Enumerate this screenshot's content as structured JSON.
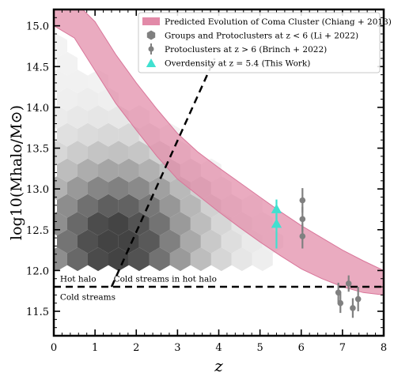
{
  "chart_data": {
    "type": "scatter",
    "title": "",
    "xlabel": "z",
    "ylabel": "log10(Mhalo/M⊙)",
    "xlim": [
      0,
      8
    ],
    "ylim": [
      11.2,
      15.2
    ],
    "xticks": [
      "0",
      "1",
      "2",
      "3",
      "4",
      "5",
      "6",
      "7",
      "8"
    ],
    "yticks": [
      "11.5",
      "12.0",
      "12.5",
      "13.0",
      "13.5",
      "14.0",
      "14.5",
      "15.0"
    ],
    "legend_position": "top-right",
    "legend": [
      {
        "label": "Predicted Evolution of Coma Cluster (Chiang + 2013)",
        "marker": "band",
        "color": "#e28aa8"
      },
      {
        "label": "Groups and Protoclusters at z < 6 (Li + 2022)",
        "marker": "hexagon",
        "color": "#808080"
      },
      {
        "label": "Protoclusters at z > 6 (Brinch + 2022)",
        "marker": "point-errorbar",
        "color": "#808080"
      },
      {
        "label": "Overdensity at z = 5.4 (This Work)",
        "marker": "triangle",
        "color": "#40e0d0"
      }
    ],
    "annotations": [
      {
        "text": "Hot halo",
        "x": 0.15,
        "y": 11.9
      },
      {
        "text": "Cold streams in hot halo",
        "x": 1.45,
        "y": 11.9
      },
      {
        "text": "Cold streams",
        "x": 0.15,
        "y": 11.68
      }
    ],
    "reference_lines": [
      {
        "name": "hot-cold-boundary",
        "style": "dashed",
        "points": [
          [
            0,
            11.8
          ],
          [
            8,
            11.8
          ]
        ]
      },
      {
        "name": "cold-streams-boundary",
        "style": "dashed",
        "points": [
          [
            1.4,
            11.8
          ],
          [
            3.9,
            14.6
          ]
        ]
      }
    ],
    "coma_band": {
      "z": [
        0,
        0.5,
        1.0,
        1.5,
        2.0,
        2.5,
        3.0,
        3.5,
        4.0,
        4.5,
        5.0,
        5.5,
        6.0,
        6.5,
        7.0,
        7.5,
        8.0
      ],
      "upper": [
        15.45,
        15.3,
        15.05,
        14.65,
        14.3,
        13.98,
        13.68,
        13.45,
        13.26,
        13.08,
        12.9,
        12.72,
        12.55,
        12.4,
        12.25,
        12.12,
        12.0
      ],
      "lower": [
        15.0,
        14.85,
        14.45,
        14.05,
        13.72,
        13.4,
        13.12,
        12.92,
        12.72,
        12.53,
        12.35,
        12.18,
        12.02,
        11.9,
        11.8,
        11.73,
        11.7
      ]
    },
    "density_hexbin": {
      "x_range": [
        0,
        5.5
      ],
      "y_range": [
        12.1,
        14.8
      ],
      "note": "grey density of groups and protoclusters at z < 6"
    },
    "series": [
      {
        "name": "Protoclusters at z > 6 (Brinch + 2022)",
        "marker": "point-errorbar",
        "color": "#808080",
        "points": [
          {
            "x": 6.03,
            "y": 12.86,
            "err": 0.15
          },
          {
            "x": 6.03,
            "y": 12.63,
            "err": 0.15
          },
          {
            "x": 6.03,
            "y": 12.42,
            "err": 0.15
          },
          {
            "x": 6.9,
            "y": 11.73,
            "err": 0.12
          },
          {
            "x": 6.95,
            "y": 11.6,
            "err": 0.12
          },
          {
            "x": 7.15,
            "y": 11.84,
            "err": 0.1
          },
          {
            "x": 7.25,
            "y": 11.54,
            "err": 0.12
          },
          {
            "x": 7.38,
            "y": 11.65,
            "err": 0.15
          }
        ]
      },
      {
        "name": "Overdensity at z = 5.4 (This Work)",
        "marker": "triangle",
        "color": "#40e0d0",
        "points": [
          {
            "x": 5.4,
            "y": 12.75,
            "err_low": 0.12,
            "err_high": 0.12
          },
          {
            "x": 5.4,
            "y": 12.57,
            "err_low": 0.3,
            "err_high": 0.12
          }
        ]
      }
    ]
  }
}
